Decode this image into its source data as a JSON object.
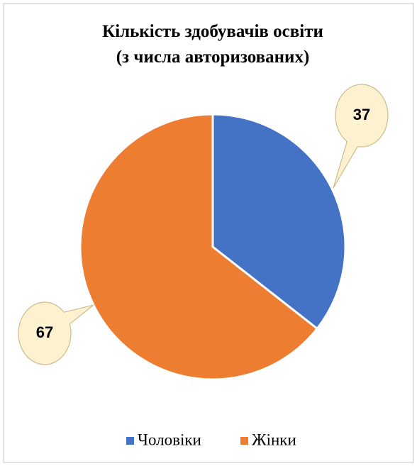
{
  "chart_data": {
    "type": "pie",
    "title": [
      "Кількість здобувачів освіти",
      "(з числа авторизованих)"
    ],
    "categories": [
      "Чоловіки",
      "Жінки"
    ],
    "values": [
      37,
      67
    ],
    "colors": [
      "#4472c4",
      "#ed7d31"
    ],
    "legend": "bottom"
  }
}
